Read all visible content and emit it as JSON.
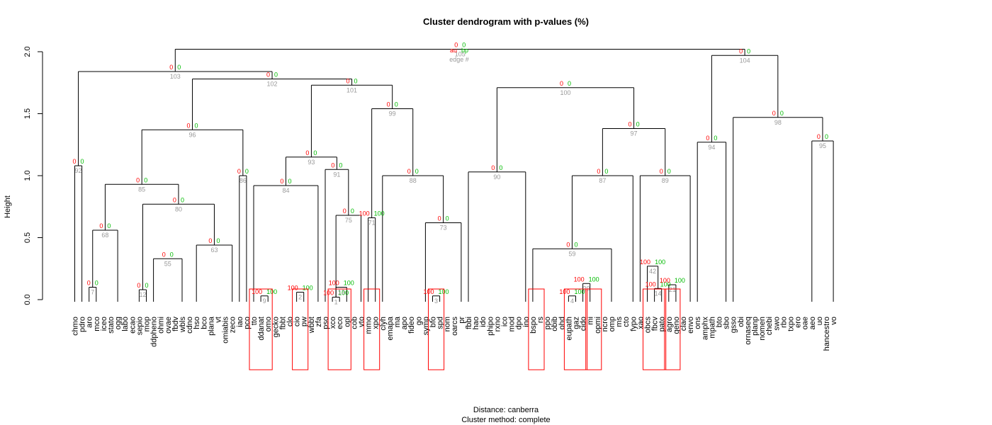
{
  "chart_data": {
    "type": "dendrogram",
    "title": "Cluster dendrogram with p-values (%)",
    "ylabel": "Height",
    "xlabel_line1": "Distance:  canberra",
    "xlabel_line2": "Cluster method: complete",
    "ylim": [
      0,
      2.0
    ],
    "yticks": [
      "0.0",
      "0.5",
      "1.0",
      "1.5",
      "2.0"
    ],
    "legend": {
      "au": "au",
      "bp": "bp",
      "edge": "edge #"
    },
    "colors": {
      "au": "#ff0000",
      "bp": "#00bb00",
      "edge": "#999999",
      "box": "#ff0000",
      "line": "#000000"
    },
    "leaves": [
      "chmo",
      "pdro",
      "aro",
      "mco",
      "iceo",
      "stato",
      "ogg",
      "labo",
      "ecao",
      "sepio",
      "mop",
      "ddpheno",
      "ohmi",
      "ovae",
      "fbdv",
      "wbls",
      "cdno",
      "hso",
      "bco",
      "plana",
      "vt",
      "omiabis",
      "zeco",
      "iao",
      "pco",
      "tto",
      "ddanat",
      "omo",
      "gecko",
      "fbbt",
      "clo",
      "cio",
      "pw",
      "wbbt",
      "zfa",
      "pso",
      "xco",
      "eco",
      "opl",
      "cob",
      "vto",
      "mmo",
      "xpo",
      "clyh",
      "emapa",
      "ma",
      "apo",
      "fideo",
      "go",
      "symp",
      "bfo",
      "spd",
      "nom",
      "oarcs",
      "pr",
      "fbbi",
      "hao",
      "ido",
      "phipo",
      "rxno",
      "ico",
      "mod",
      "dpo",
      "ino",
      "bspo",
      "rs",
      "ppo",
      "obib",
      "ohd",
      "eupath",
      "gaz",
      "cido",
      "mi",
      "opmi",
      "ncro",
      "omp",
      "ms",
      "cto",
      "fypo",
      "xao",
      "obcs",
      "fbcv",
      "pato",
      "agro",
      "geno",
      "clao",
      "envo",
      "ons",
      "amphx",
      "mpath",
      "bto",
      "sbo",
      "gsso",
      "obi",
      "ornaseq",
      "planp",
      "nomen",
      "chebi",
      "swo",
      "rbo",
      "txpo",
      "ero",
      "oae",
      "aeo",
      "uo",
      "hancestro",
      "vo"
    ],
    "nodes": [
      {
        "edge": 1,
        "h": 0.02,
        "l": "xco",
        "r": "eco",
        "au": 100,
        "bp": 100
      },
      {
        "edge": 2,
        "h": 0.06,
        "l": "cio",
        "r": "pw",
        "au": 100,
        "bp": 100
      },
      {
        "edge": 3,
        "h": 0.03,
        "l": "bfo",
        "r": "spd",
        "au": 100,
        "bp": 100
      },
      {
        "edge": 4,
        "h": 0.03,
        "l": "eupath",
        "r": "gaz",
        "au": 100,
        "bp": 100
      },
      {
        "edge": 7,
        "h": 0.1,
        "l": "aro",
        "r": "mco",
        "au": 0,
        "bp": 0
      },
      {
        "edge": 9,
        "h": 0.03,
        "l": "ddanat",
        "r": "omo",
        "au": 100,
        "bp": 100
      },
      {
        "edge": 12,
        "h": 0.08,
        "l": "sepio",
        "r": "mop",
        "au": 0,
        "bp": 0
      },
      {
        "edge": 13,
        "h": 0.1,
        "l": "eco",
        "r": "opl",
        "au": 100,
        "bp": 100
      },
      {
        "edge": 14,
        "h": 0.09,
        "l": "fbcv",
        "r": "pato",
        "au": 100,
        "bp": 100
      },
      {
        "edge": 21,
        "h": 0.12,
        "l": "agro",
        "r": "geno",
        "au": 100,
        "bp": 100
      },
      {
        "edge": 29,
        "h": 0.13,
        "l": "cido",
        "r": "mi",
        "au": 100,
        "bp": 100
      },
      {
        "edge": 42,
        "h": 0.27,
        "l": "obcs",
        "r": "fbcv",
        "au": 100,
        "bp": 100
      },
      {
        "edge": 55,
        "h": 0.33,
        "l": "ddpheno",
        "r": "wbls",
        "au": 0,
        "bp": 0
      },
      {
        "edge": 59,
        "h": 0.41,
        "l": "bspo",
        "r": "omp",
        "au": 0,
        "bp": 0
      },
      {
        "edge": 63,
        "h": 0.44,
        "l": "hso",
        "r": "zeco",
        "au": 0,
        "bp": 0
      },
      {
        "edge": 68,
        "h": 0.56,
        "l": "aro",
        "r": "ogg",
        "au": 0,
        "bp": 0
      },
      {
        "edge": 71,
        "h": 0.66,
        "l": "mmo",
        "r": "xpo",
        "au": 100,
        "bp": 100
      },
      {
        "edge": 73,
        "h": 0.62,
        "l": "symp",
        "r": "pr",
        "au": 0,
        "bp": 0
      },
      {
        "edge": 75,
        "h": 0.68,
        "l": "xco",
        "r": "vto",
        "au": 0,
        "bp": 0
      },
      {
        "edge": 80,
        "h": 0.77,
        "l": "mop",
        "r": "zeco",
        "au": 0,
        "bp": 0
      },
      {
        "edge": 84,
        "h": 0.92,
        "l": "tto",
        "r": "zfa",
        "au": 0,
        "bp": 0
      },
      {
        "edge": 85,
        "h": 0.93,
        "l": "aro",
        "r": "zeco",
        "au": 0,
        "bp": 0
      },
      {
        "edge": 86,
        "h": 1.0,
        "l": "iao",
        "r": "pco",
        "au": 0,
        "bp": 0
      },
      {
        "edge": 87,
        "h": 1.0,
        "l": "bspo",
        "r": "fypo",
        "au": 0,
        "bp": 0
      },
      {
        "edge": 88,
        "h": 1.0,
        "l": "clyh",
        "r": "pr",
        "au": 0,
        "bp": 0
      },
      {
        "edge": 89,
        "h": 1.0,
        "l": "xao",
        "r": "envo",
        "au": 0,
        "bp": 0
      },
      {
        "edge": 90,
        "h": 1.03,
        "l": "fbbi",
        "r": "ino",
        "au": 0,
        "bp": 0
      },
      {
        "edge": 91,
        "h": 1.05,
        "l": "pso",
        "r": "vto",
        "au": 0,
        "bp": 0
      },
      {
        "edge": 92,
        "h": 1.08,
        "l": "chmo",
        "r": "pdro",
        "au": 0,
        "bp": 0
      },
      {
        "edge": 93,
        "h": 1.15,
        "l": "tto",
        "r": "vto",
        "au": 0,
        "bp": 0
      },
      {
        "edge": 94,
        "h": 1.27,
        "l": "ons",
        "r": "sbo",
        "au": 0,
        "bp": 0
      },
      {
        "edge": 95,
        "h": 1.28,
        "l": "aeo",
        "r": "vo",
        "au": 0,
        "bp": 0
      },
      {
        "edge": 96,
        "h": 1.37,
        "l": "aro",
        "r": "pco",
        "au": 0,
        "bp": 0
      },
      {
        "edge": 97,
        "h": 1.38,
        "l": "bspo",
        "r": "envo",
        "au": 0,
        "bp": 0
      },
      {
        "edge": 98,
        "h": 1.47,
        "l": "gsso",
        "r": "vo",
        "au": 0,
        "bp": 0
      },
      {
        "edge": 99,
        "h": 1.54,
        "l": "mmo",
        "r": "pr",
        "au": 0,
        "bp": 0
      },
      {
        "edge": 100,
        "h": 1.71,
        "l": "fbbi",
        "r": "envo",
        "au": 0,
        "bp": 0
      },
      {
        "edge": 101,
        "h": 1.73,
        "l": "tto",
        "r": "pr",
        "au": 0,
        "bp": 0
      },
      {
        "edge": 102,
        "h": 1.78,
        "l": "aro",
        "r": "pr",
        "au": 0,
        "bp": 0
      },
      {
        "edge": 103,
        "h": 1.84,
        "l": "chmo",
        "r": "pr",
        "au": 0,
        "bp": 0
      },
      {
        "edge": 104,
        "h": 1.97,
        "l": "ons",
        "r": "vo",
        "au": 0,
        "bp": 0
      },
      {
        "edge": 105,
        "h": 2.02,
        "l": "chmo",
        "r": "vo",
        "au": 0,
        "bp": 0
      }
    ],
    "boxes": [
      {
        "from": "tto",
        "to": "omo"
      },
      {
        "from": "cio",
        "to": "pw"
      },
      {
        "from": "xco",
        "to": "opl"
      },
      {
        "from": "mmo",
        "to": "xpo"
      },
      {
        "from": "bfo",
        "to": "spd"
      },
      {
        "from": "bspo",
        "to": "rs"
      },
      {
        "from": "eupath",
        "to": "cido"
      },
      {
        "from": "mi",
        "to": "opmi"
      },
      {
        "from": "obcs",
        "to": "pato"
      },
      {
        "from": "agro",
        "to": "geno"
      }
    ]
  }
}
